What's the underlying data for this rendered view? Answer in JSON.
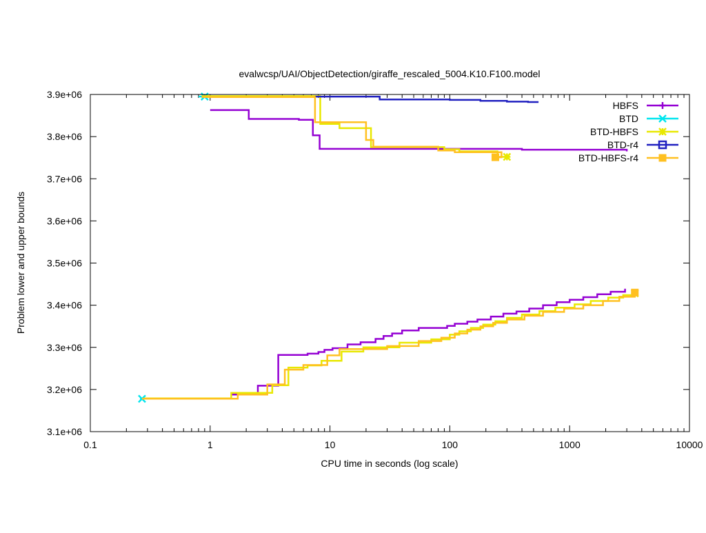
{
  "chart_data": {
    "type": "line",
    "title": "evalwcsp/UAI/ObjectDetection/giraffe_rescaled_5004.K10.F100.model",
    "xlabel": "CPU time in seconds (log scale)",
    "ylabel": "Problem lower and upper bounds",
    "xscale": "log",
    "xlim": [
      0.1,
      10000
    ],
    "ylim": [
      3100000,
      3900000
    ],
    "x_ticks": [
      {
        "value": 0.1,
        "label": "0.1"
      },
      {
        "value": 1,
        "label": "1"
      },
      {
        "value": 10,
        "label": "10"
      },
      {
        "value": 100,
        "label": "100"
      },
      {
        "value": 1000,
        "label": "1000"
      },
      {
        "value": 10000,
        "label": "10000"
      }
    ],
    "y_ticks": [
      {
        "value": 3100000,
        "label": "3.1e+06"
      },
      {
        "value": 3200000,
        "label": "3.2e+06"
      },
      {
        "value": 3300000,
        "label": "3.3e+06"
      },
      {
        "value": 3400000,
        "label": "3.4e+06"
      },
      {
        "value": 3500000,
        "label": "3.5e+06"
      },
      {
        "value": 3600000,
        "label": "3.6e+06"
      },
      {
        "value": 3700000,
        "label": "3.7e+06"
      },
      {
        "value": 3800000,
        "label": "3.8e+06"
      },
      {
        "value": 3900000,
        "label": "3.9e+06"
      }
    ],
    "legend_position": "top-right",
    "series": [
      {
        "name": "HBFS",
        "color": "#9400d3",
        "marker": "plus",
        "bound": "upper",
        "points": [
          [
            1.0,
            3863000
          ],
          [
            2.1,
            3863000
          ],
          [
            2.1,
            3842000
          ],
          [
            5.5,
            3842000
          ],
          [
            5.5,
            3840000
          ],
          [
            7.2,
            3840000
          ],
          [
            7.2,
            3803000
          ],
          [
            8.2,
            3803000
          ],
          [
            8.2,
            3771000
          ],
          [
            400,
            3771000
          ],
          [
            400,
            3769000
          ],
          [
            3000,
            3769000
          ],
          [
            3000,
            3765000
          ]
        ]
      },
      {
        "name": "HBFS",
        "color": "#9400d3",
        "marker": "plus",
        "bound": "lower",
        "points": [
          [
            1.5,
            3188000
          ],
          [
            2.5,
            3188000
          ],
          [
            2.5,
            3209000
          ],
          [
            3.7,
            3209000
          ],
          [
            3.7,
            3282000
          ],
          [
            6.5,
            3282000
          ],
          [
            6.5,
            3285000
          ],
          [
            8,
            3285000
          ],
          [
            8,
            3289000
          ],
          [
            9,
            3289000
          ],
          [
            9,
            3294000
          ],
          [
            10.5,
            3294000
          ],
          [
            10.5,
            3298000
          ],
          [
            14,
            3298000
          ],
          [
            14,
            3307000
          ],
          [
            18,
            3307000
          ],
          [
            18,
            3312000
          ],
          [
            24,
            3312000
          ],
          [
            24,
            3320000
          ],
          [
            28,
            3320000
          ],
          [
            28,
            3327000
          ],
          [
            33,
            3327000
          ],
          [
            33,
            3333000
          ],
          [
            40,
            3333000
          ],
          [
            40,
            3340000
          ],
          [
            55,
            3340000
          ],
          [
            55,
            3346000
          ],
          [
            95,
            3346000
          ],
          [
            95,
            3351000
          ],
          [
            110,
            3351000
          ],
          [
            110,
            3356000
          ],
          [
            140,
            3356000
          ],
          [
            140,
            3361000
          ],
          [
            170,
            3361000
          ],
          [
            170,
            3366000
          ],
          [
            220,
            3366000
          ],
          [
            220,
            3373000
          ],
          [
            280,
            3373000
          ],
          [
            280,
            3380000
          ],
          [
            360,
            3380000
          ],
          [
            360,
            3385000
          ],
          [
            460,
            3385000
          ],
          [
            460,
            3392000
          ],
          [
            600,
            3392000
          ],
          [
            600,
            3400000
          ],
          [
            780,
            3400000
          ],
          [
            780,
            3407000
          ],
          [
            1000,
            3407000
          ],
          [
            1000,
            3413000
          ],
          [
            1300,
            3413000
          ],
          [
            1300,
            3419000
          ],
          [
            1700,
            3419000
          ],
          [
            1700,
            3426000
          ],
          [
            2200,
            3426000
          ],
          [
            2200,
            3432000
          ],
          [
            2900,
            3432000
          ],
          [
            2900,
            3439000
          ]
        ]
      },
      {
        "name": "BTD",
        "color": "#00e5ee",
        "marker": "x",
        "bound": "upper",
        "points": [
          [
            0.8,
            3895000
          ],
          [
            0.9,
            3895000
          ]
        ]
      },
      {
        "name": "BTD",
        "color": "#00e5ee",
        "marker": "x",
        "bound": "lower",
        "points": [
          [
            0.26,
            3178000
          ],
          [
            0.27,
            3178000
          ]
        ]
      },
      {
        "name": "BTD-HBFS",
        "color": "#e8e800",
        "marker": "asterisk",
        "bound": "upper",
        "points": [
          [
            0.85,
            3896000
          ],
          [
            8.3,
            3896000
          ],
          [
            8.3,
            3830000
          ],
          [
            12,
            3830000
          ],
          [
            12,
            3820000
          ],
          [
            22,
            3820000
          ],
          [
            22,
            3775000
          ],
          [
            90,
            3775000
          ],
          [
            90,
            3770000
          ],
          [
            120,
            3770000
          ],
          [
            120,
            3765000
          ],
          [
            250,
            3765000
          ],
          [
            250,
            3752000
          ],
          [
            300,
            3752000
          ]
        ]
      },
      {
        "name": "BTD-HBFS",
        "color": "#e8e800",
        "marker": "asterisk",
        "bound": "lower",
        "points": [
          [
            0.28,
            3179000
          ],
          [
            1.5,
            3179000
          ],
          [
            1.5,
            3192000
          ],
          [
            3.3,
            3192000
          ],
          [
            3.3,
            3210000
          ],
          [
            4.5,
            3210000
          ],
          [
            4.5,
            3252000
          ],
          [
            6.5,
            3252000
          ],
          [
            6.5,
            3257000
          ],
          [
            8.5,
            3257000
          ],
          [
            8.5,
            3268000
          ],
          [
            12.5,
            3268000
          ],
          [
            12.5,
            3290000
          ],
          [
            19,
            3290000
          ],
          [
            19,
            3300000
          ],
          [
            38,
            3300000
          ],
          [
            38,
            3311000
          ],
          [
            70,
            3311000
          ],
          [
            70,
            3319000
          ],
          [
            100,
            3319000
          ],
          [
            100,
            3330000
          ],
          [
            120,
            3330000
          ],
          [
            120,
            3338000
          ],
          [
            150,
            3338000
          ],
          [
            150,
            3346000
          ],
          [
            190,
            3346000
          ],
          [
            190,
            3354000
          ],
          [
            240,
            3354000
          ],
          [
            240,
            3362000
          ],
          [
            300,
            3362000
          ],
          [
            300,
            3370000
          ],
          [
            400,
            3370000
          ],
          [
            400,
            3378000
          ],
          [
            560,
            3378000
          ],
          [
            560,
            3386000
          ],
          [
            760,
            3386000
          ],
          [
            760,
            3394000
          ],
          [
            1100,
            3394000
          ],
          [
            1100,
            3402000
          ],
          [
            1500,
            3402000
          ],
          [
            1500,
            3410000
          ],
          [
            2100,
            3410000
          ],
          [
            2100,
            3418000
          ],
          [
            2800,
            3418000
          ],
          [
            2800,
            3424000
          ],
          [
            3500,
            3424000
          ],
          [
            3500,
            3428000
          ]
        ]
      },
      {
        "name": "BTD-r4",
        "color": "#2020c0",
        "marker": "square",
        "bound": "upper",
        "points": [
          [
            7.5,
            3895000
          ],
          [
            26,
            3895000
          ],
          [
            26,
            3888000
          ],
          [
            100,
            3888000
          ],
          [
            100,
            3887000
          ],
          [
            180,
            3887000
          ],
          [
            180,
            3885000
          ],
          [
            300,
            3885000
          ],
          [
            300,
            3883000
          ],
          [
            450,
            3883000
          ],
          [
            450,
            3882000
          ],
          [
            550,
            3882000
          ]
        ]
      },
      {
        "name": "BTD-HBFS-r4",
        "color": "#ffc020",
        "marker": "filled-square",
        "bound": "upper",
        "points": [
          [
            0.85,
            3894000
          ],
          [
            7.5,
            3894000
          ],
          [
            7.5,
            3834000
          ],
          [
            20,
            3834000
          ],
          [
            20,
            3792000
          ],
          [
            23,
            3792000
          ],
          [
            23,
            3776000
          ],
          [
            80,
            3776000
          ],
          [
            80,
            3767000
          ],
          [
            110,
            3767000
          ],
          [
            110,
            3763000
          ],
          [
            270,
            3763000
          ],
          [
            270,
            3751000
          ],
          [
            240,
            3751000
          ]
        ]
      },
      {
        "name": "BTD-HBFS-r4",
        "color": "#ffc020",
        "marker": "filled-square",
        "bound": "lower",
        "points": [
          [
            0.27,
            3178000
          ],
          [
            1.7,
            3178000
          ],
          [
            1.7,
            3188000
          ],
          [
            3.0,
            3188000
          ],
          [
            3.0,
            3212000
          ],
          [
            4.2,
            3212000
          ],
          [
            4.2,
            3247000
          ],
          [
            6.0,
            3247000
          ],
          [
            6.0,
            3258000
          ],
          [
            9.5,
            3258000
          ],
          [
            9.5,
            3281000
          ],
          [
            12,
            3281000
          ],
          [
            12,
            3296000
          ],
          [
            30,
            3296000
          ],
          [
            30,
            3303000
          ],
          [
            55,
            3303000
          ],
          [
            55,
            3315000
          ],
          [
            85,
            3315000
          ],
          [
            85,
            3323000
          ],
          [
            110,
            3323000
          ],
          [
            110,
            3333000
          ],
          [
            140,
            3333000
          ],
          [
            140,
            3342000
          ],
          [
            180,
            3342000
          ],
          [
            180,
            3350000
          ],
          [
            230,
            3350000
          ],
          [
            230,
            3358000
          ],
          [
            300,
            3358000
          ],
          [
            300,
            3366000
          ],
          [
            420,
            3366000
          ],
          [
            420,
            3375000
          ],
          [
            600,
            3375000
          ],
          [
            600,
            3384000
          ],
          [
            900,
            3384000
          ],
          [
            900,
            3392000
          ],
          [
            1300,
            3392000
          ],
          [
            1300,
            3400000
          ],
          [
            1900,
            3400000
          ],
          [
            1900,
            3410000
          ],
          [
            2600,
            3410000
          ],
          [
            2600,
            3420000
          ],
          [
            3500,
            3420000
          ],
          [
            3500,
            3430000
          ]
        ]
      }
    ],
    "legend": [
      {
        "name": "HBFS",
        "color": "#9400d3",
        "marker": "plus"
      },
      {
        "name": "BTD",
        "color": "#00e5ee",
        "marker": "x"
      },
      {
        "name": "BTD-HBFS",
        "color": "#e8e800",
        "marker": "asterisk"
      },
      {
        "name": "BTD-r4",
        "color": "#2020c0",
        "marker": "square"
      },
      {
        "name": "BTD-HBFS-r4",
        "color": "#ffc020",
        "marker": "filled-square"
      }
    ]
  }
}
